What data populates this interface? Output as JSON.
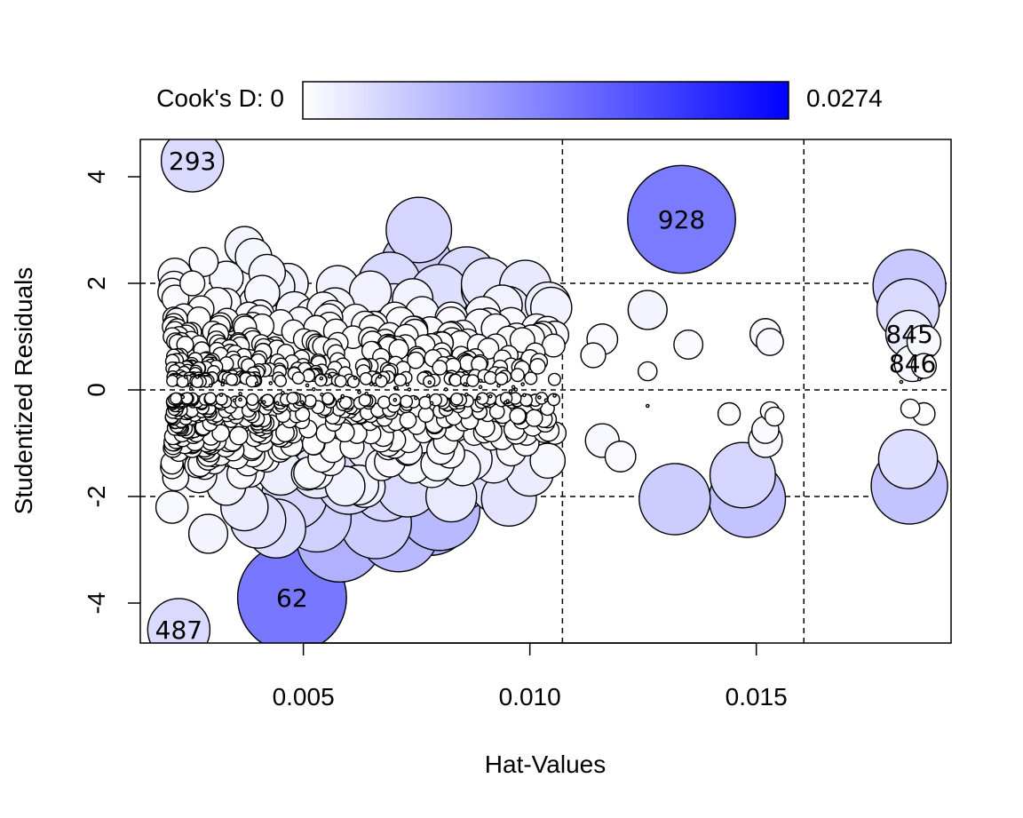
{
  "chart_data": {
    "type": "scatter",
    "xlabel": "Hat-Values",
    "ylabel": "Studentized Residuals",
    "xlim": [
      0.0014,
      0.0193
    ],
    "ylim": [
      -4.75,
      4.7
    ],
    "xticks": [
      {
        "v": 0.005,
        "label": "0.005"
      },
      {
        "v": 0.01,
        "label": "0.010"
      },
      {
        "v": 0.015,
        "label": "0.015"
      }
    ],
    "yticks": [
      {
        "v": -4,
        "label": "-4"
      },
      {
        "v": -2,
        "label": "-2"
      },
      {
        "v": 0,
        "label": "0"
      },
      {
        "v": 2,
        "label": "2"
      },
      {
        "v": 4,
        "label": "4"
      }
    ],
    "hlines": [
      -2,
      0,
      2
    ],
    "vlines": [
      0.01072,
      0.01605
    ],
    "legend": {
      "position": "top",
      "label": "Cook's D: 0",
      "max_label": "0.0274",
      "min": 0,
      "max": 0.0274,
      "color_low": "#ffffff",
      "color_high": "#0000ff"
    },
    "labeled_points": [
      {
        "label": "293",
        "x": 0.00255,
        "y": 4.3,
        "cooksd": 0.004
      },
      {
        "label": "928",
        "x": 0.01335,
        "y": 3.2,
        "cooksd": 0.0142
      },
      {
        "label": "62",
        "x": 0.00475,
        "y": -3.9,
        "cooksd": 0.0145
      },
      {
        "label": "487",
        "x": 0.00225,
        "y": -4.5,
        "cooksd": 0.004
      },
      {
        "label": "845",
        "x": 0.01838,
        "y": 1.05,
        "cooksd": 0.002
      },
      {
        "label": "846",
        "x": 0.01845,
        "y": 0.5,
        "cooksd": 0.001
      }
    ],
    "points": [
      {
        "x": 0.00755,
        "y": 3.0,
        "cooksd": 0.0045
      },
      {
        "x": 0.0075,
        "y": 2.35,
        "cooksd": 0.0055
      },
      {
        "x": 0.0086,
        "y": 2.1,
        "cooksd": 0.004
      },
      {
        "x": 0.0069,
        "y": 2.0,
        "cooksd": 0.004
      },
      {
        "x": 0.0091,
        "y": 1.9,
        "cooksd": 0.003
      },
      {
        "x": 0.0099,
        "y": 1.95,
        "cooksd": 0.0025
      },
      {
        "x": 0.008,
        "y": 1.8,
        "cooksd": 0.0035
      },
      {
        "x": 0.0104,
        "y": 1.6,
        "cooksd": 0.0018
      },
      {
        "x": 0.0095,
        "y": 1.5,
        "cooksd": 0.002
      },
      {
        "x": 0.0068,
        "y": 1.5,
        "cooksd": 0.0025
      },
      {
        "x": 0.007,
        "y": 1.55,
        "cooksd": 0.002
      },
      {
        "x": 0.0057,
        "y": 1.55,
        "cooksd": 0.0012
      },
      {
        "x": 0.0037,
        "y": 2.7,
        "cooksd": 0.0012
      },
      {
        "x": 0.0028,
        "y": 2.4,
        "cooksd": 0.0005
      },
      {
        "x": 0.0039,
        "y": 2.5,
        "cooksd": 0.001
      },
      {
        "x": 0.0042,
        "y": 2.2,
        "cooksd": 0.001
      },
      {
        "x": 0.0044,
        "y": 1.85,
        "cooksd": 0.0015
      },
      {
        "x": 0.004,
        "y": 1.6,
        "cooksd": 0.0012
      },
      {
        "x": 0.0033,
        "y": 2.1,
        "cooksd": 0.0008
      },
      {
        "x": 0.0048,
        "y": 1.5,
        "cooksd": 0.001
      },
      {
        "x": 0.0052,
        "y": 1.4,
        "cooksd": 0.0008
      },
      {
        "x": 0.00255,
        "y": 2.0,
        "cooksd": 0.0003
      },
      {
        "x": 0.0031,
        "y": 1.65,
        "cooksd": 0.0005
      },
      {
        "x": 0.0035,
        "y": 1.3,
        "cooksd": 0.0006
      },
      {
        "x": 0.0062,
        "y": 1.2,
        "cooksd": 0.0006
      },
      {
        "x": 0.0078,
        "y": 1.1,
        "cooksd": 0.0005
      },
      {
        "x": 0.0089,
        "y": 1.2,
        "cooksd": 0.0007
      },
      {
        "x": 0.0126,
        "y": 1.5,
        "cooksd": 0.0012
      },
      {
        "x": 0.0116,
        "y": 0.95,
        "cooksd": 0.0006
      },
      {
        "x": 0.0114,
        "y": 0.65,
        "cooksd": 0.0003
      },
      {
        "x": 0.0135,
        "y": 0.85,
        "cooksd": 0.0005
      },
      {
        "x": 0.0152,
        "y": 1.05,
        "cooksd": 0.0006
      },
      {
        "x": 0.0153,
        "y": 0.9,
        "cooksd": 0.0004
      },
      {
        "x": 0.01838,
        "y": 1.95,
        "cooksd": 0.0058
      },
      {
        "x": 0.01835,
        "y": 1.5,
        "cooksd": 0.004
      },
      {
        "x": 0.0187,
        "y": 0.9,
        "cooksd": 0.0008
      },
      {
        "x": 0.0187,
        "y": 0.45,
        "cooksd": 0.0003
      },
      {
        "x": 0.0126,
        "y": 0.35,
        "cooksd": 0.0001
      },
      {
        "x": 0.0099,
        "y": 0.45,
        "cooksd": 0.0001
      },
      {
        "x": 0.0186,
        "y": 0.2,
        "cooksd": 0.0
      },
      {
        "x": 0.0182,
        "y": 0.15,
        "cooksd": 0.0
      },
      {
        "x": 0.0132,
        "y": -2.05,
        "cooksd": 0.0055
      },
      {
        "x": 0.0148,
        "y": -2.05,
        "cooksd": 0.0065
      },
      {
        "x": 0.0147,
        "y": -1.6,
        "cooksd": 0.0045
      },
      {
        "x": 0.01838,
        "y": -1.8,
        "cooksd": 0.0065
      },
      {
        "x": 0.01835,
        "y": -1.3,
        "cooksd": 0.0035
      },
      {
        "x": 0.0152,
        "y": -0.95,
        "cooksd": 0.0008
      },
      {
        "x": 0.0152,
        "y": -0.75,
        "cooksd": 0.0004
      },
      {
        "x": 0.0116,
        "y": -0.95,
        "cooksd": 0.0008
      },
      {
        "x": 0.012,
        "y": -1.25,
        "cooksd": 0.0006
      },
      {
        "x": 0.0144,
        "y": -0.45,
        "cooksd": 0.0002
      },
      {
        "x": 0.0153,
        "y": -0.4,
        "cooksd": 0.0001
      },
      {
        "x": 0.0154,
        "y": -0.5,
        "cooksd": 0.0001
      },
      {
        "x": 0.0187,
        "y": -0.45,
        "cooksd": 0.0002
      },
      {
        "x": 0.0184,
        "y": -0.35,
        "cooksd": 0.0001
      },
      {
        "x": 0.0126,
        "y": -0.3,
        "cooksd": 0.0
      },
      {
        "x": 0.01,
        "y": -1.55,
        "cooksd": 0.002
      },
      {
        "x": 0.0093,
        "y": -1.8,
        "cooksd": 0.003
      },
      {
        "x": 0.0092,
        "y": -1.35,
        "cooksd": 0.0015
      },
      {
        "x": 0.0099,
        "y": -0.85,
        "cooksd": 0.0005
      },
      {
        "x": 0.0103,
        "y": -0.45,
        "cooksd": 0.0001
      },
      {
        "x": 0.0094,
        "y": -0.45,
        "cooksd": 0.0001
      },
      {
        "x": 0.0058,
        "y": -2.8,
        "cooksd": 0.0085
      },
      {
        "x": 0.0071,
        "y": -2.65,
        "cooksd": 0.0075
      },
      {
        "x": 0.008,
        "y": -2.25,
        "cooksd": 0.0075
      },
      {
        "x": 0.0078,
        "y": -2.3,
        "cooksd": 0.0085
      },
      {
        "x": 0.0066,
        "y": -2.5,
        "cooksd": 0.0055
      },
      {
        "x": 0.0053,
        "y": -2.4,
        "cooksd": 0.005
      },
      {
        "x": 0.0044,
        "y": -2.6,
        "cooksd": 0.0035
      },
      {
        "x": 0.004,
        "y": -2.45,
        "cooksd": 0.003
      },
      {
        "x": 0.0048,
        "y": -2.0,
        "cooksd": 0.0045
      },
      {
        "x": 0.0037,
        "y": -2.2,
        "cooksd": 0.002
      },
      {
        "x": 0.0029,
        "y": -2.7,
        "cooksd": 0.0012
      },
      {
        "x": 0.0021,
        "y": -2.2,
        "cooksd": 0.0007
      },
      {
        "x": 0.006,
        "y": -1.75,
        "cooksd": 0.004
      },
      {
        "x": 0.0068,
        "y": -1.85,
        "cooksd": 0.0045
      },
      {
        "x": 0.0073,
        "y": -1.8,
        "cooksd": 0.004
      },
      {
        "x": 0.0085,
        "y": -1.7,
        "cooksd": 0.0035
      },
      {
        "x": 0.0087,
        "y": -1.3,
        "cooksd": 0.0015
      },
      {
        "x": 0.0053,
        "y": -1.55,
        "cooksd": 0.0025
      },
      {
        "x": 0.0064,
        "y": -1.1,
        "cooksd": 0.0013
      },
      {
        "x": 0.007,
        "y": -1.0,
        "cooksd": 0.001
      },
      {
        "x": 0.0045,
        "y": -1.55,
        "cooksd": 0.0018
      },
      {
        "x": 0.0033,
        "y": -1.8,
        "cooksd": 0.0012
      },
      {
        "x": 0.0027,
        "y": -1.6,
        "cooksd": 0.0009
      },
      {
        "x": 0.0024,
        "y": -1.2,
        "cooksd": 0.0006
      },
      {
        "x": 0.003,
        "y": -1.3,
        "cooksd": 0.002
      },
      {
        "x": 0.0028,
        "y": -1.0,
        "cooksd": 0.0008
      },
      {
        "x": 0.004,
        "y": -0.9,
        "cooksd": 0.0006
      },
      {
        "x": 0.0058,
        "y": -0.8,
        "cooksd": 0.0005
      },
      {
        "x": 0.0076,
        "y": -0.9,
        "cooksd": 0.0006
      },
      {
        "x": 0.0084,
        "y": -0.6,
        "cooksd": 0.0003
      }
    ]
  }
}
